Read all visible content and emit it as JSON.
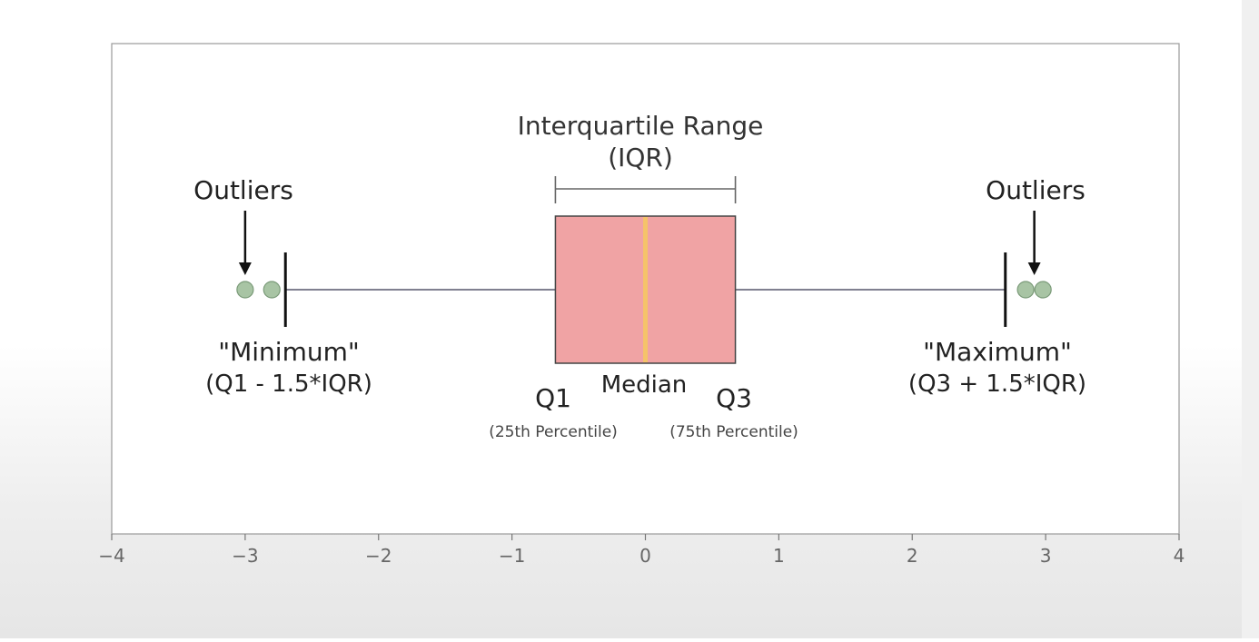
{
  "chart_data": {
    "type": "box",
    "xlim": [
      -4,
      4
    ],
    "xticks": [
      "−4",
      "−3",
      "−2",
      "−1",
      "0",
      "1",
      "2",
      "3",
      "4"
    ],
    "box": {
      "q1": -0.6745,
      "median": 0,
      "q3": 0.6745,
      "whisker_low": -2.698,
      "whisker_high": 2.698,
      "outliers_low": [
        -3.0,
        -2.8
      ],
      "outliers_high": [
        2.85,
        2.98
      ]
    },
    "colors": {
      "box_fill": "#f0a3a4",
      "box_edge": "#444444",
      "median": "#f5c36a",
      "whisker": "#808090",
      "outlier_fill": "#a8c4a4",
      "outlier_edge": "#7a9a78"
    },
    "annotations": {
      "iqr_title": "Interquartile Range",
      "iqr_subtitle": "(IQR)",
      "outliers_left": "Outliers",
      "outliers_right": "Outliers",
      "minimum_label": "\"Minimum\"",
      "minimum_formula": "(Q1 - 1.5*IQR)",
      "maximum_label": "\"Maximum\"",
      "maximum_formula": "(Q3 + 1.5*IQR)",
      "q1_label": "Q1",
      "q1_sub": "(25th Percentile)",
      "median_label": "Median",
      "q3_label": "Q3",
      "q3_sub": "(75th Percentile)"
    }
  }
}
